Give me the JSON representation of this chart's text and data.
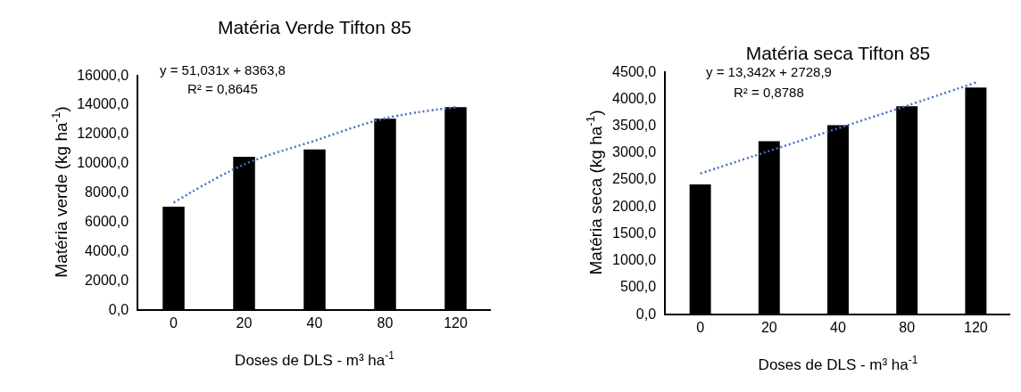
{
  "chart_data": [
    {
      "type": "bar",
      "title": "Matéria Verde Tifton 85",
      "xlabel": "Doses de DLS - m³ ha$^{-1}$",
      "ylabel": "Matéria verde (kg ha$^{-1}$)",
      "categories": [
        "0",
        "20",
        "40",
        "80",
        "120"
      ],
      "series": [
        {
          "color": "#000000",
          "values": [
            7000,
            10400,
            10900,
            13000,
            13800
          ]
        },
        {
          "type": "line",
          "color": "#4472c4",
          "line_style": "dotted",
          "values": [
            7270,
            9880,
            11500,
            13030,
            13790
          ]
        }
      ],
      "ylim": [
        0,
        16000
      ],
      "yticks": [
        {
          "value": 0,
          "label": "0,0"
        },
        {
          "value": 2000,
          "label": "2000,0"
        },
        {
          "value": 4000,
          "label": "4000,0"
        },
        {
          "value": 6000,
          "label": "6000,0"
        },
        {
          "value": 8000,
          "label": "8000,0"
        },
        {
          "value": 10000,
          "label": "10000,0"
        },
        {
          "value": 12000,
          "label": "12000,0"
        },
        {
          "value": 14000,
          "label": "14000,0"
        },
        {
          "value": 16000,
          "label": "16000,0"
        }
      ],
      "annotations": [
        "y = 51,031x + 8363,8",
        "R² = 0,8645"
      ],
      "grid": false
    },
    {
      "type": "bar",
      "title": "Matéria seca Tifton 85",
      "xlabel": "Doses de DLS - m³ ha$^{-1}$",
      "ylabel": "Matéria seca (kg ha$^{-1}$)",
      "categories": [
        "0",
        "20",
        "40",
        "80",
        "120"
      ],
      "series": [
        {
          "color": "#000000",
          "values": [
            2400,
            3200,
            3500,
            3850,
            4200
          ]
        },
        {
          "type": "line",
          "color": "#4472c4",
          "line_style": "dotted",
          "values": [
            2600,
            3020,
            3440,
            3860,
            4290
          ]
        }
      ],
      "ylim": [
        0,
        4500
      ],
      "yticks": [
        {
          "value": 0,
          "label": "0,0"
        },
        {
          "value": 500,
          "label": "500,0"
        },
        {
          "value": 1000,
          "label": "1000,0"
        },
        {
          "value": 1500,
          "label": "1500,0"
        },
        {
          "value": 2000,
          "label": "2000,0"
        },
        {
          "value": 2500,
          "label": "2500,0"
        },
        {
          "value": 3000,
          "label": "3000,0"
        },
        {
          "value": 3500,
          "label": "3500,0"
        },
        {
          "value": 4000,
          "label": "4000,0"
        },
        {
          "value": 4500,
          "label": "4500,0"
        }
      ],
      "annotations": [
        "y = 13,342x + 2728,9",
        "R² = 0,8788"
      ],
      "grid": false
    }
  ]
}
